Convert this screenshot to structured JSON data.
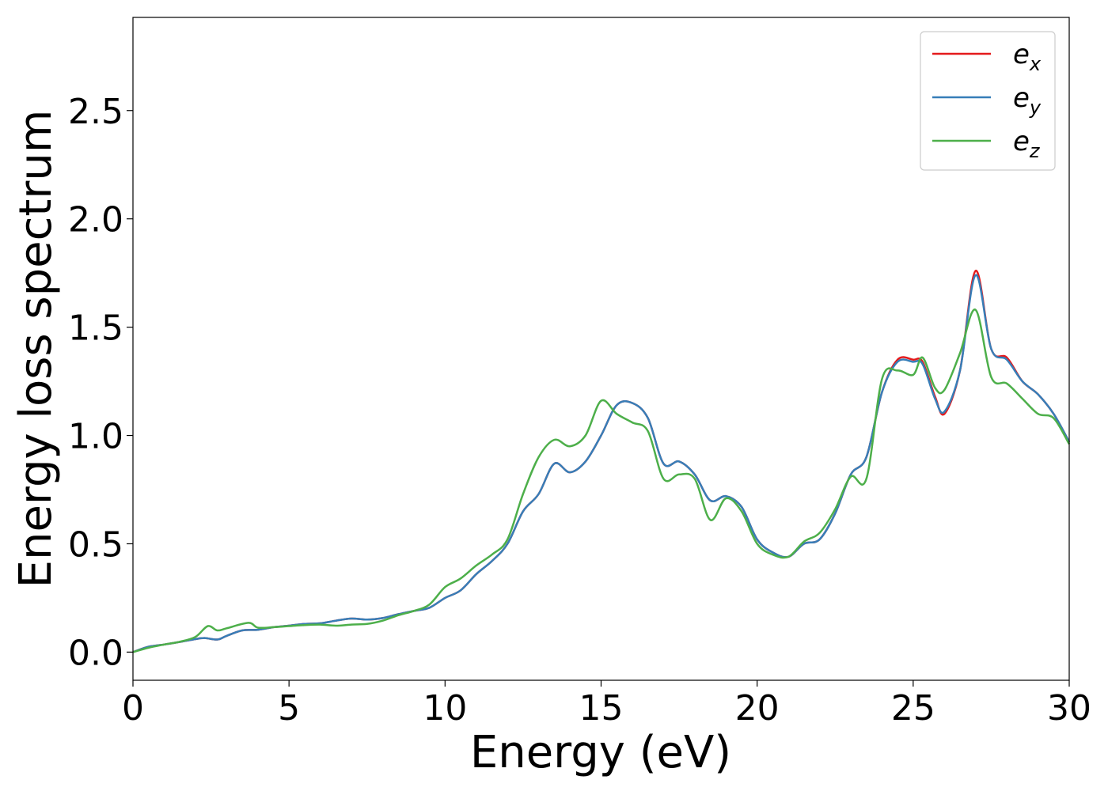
{
  "chart_data": {
    "type": "line",
    "title": "",
    "xlabel": "Energy (eV)",
    "ylabel": "Energy loss spectrum",
    "xlim": [
      0,
      30
    ],
    "ylim": [
      -0.13,
      2.93
    ],
    "xticks": [
      0,
      5,
      10,
      15,
      20,
      25,
      30
    ],
    "xtick_labels": [
      "0",
      "5",
      "10",
      "15",
      "20",
      "25",
      "30"
    ],
    "yticks": [
      0.0,
      0.5,
      1.0,
      1.5,
      2.0,
      2.5
    ],
    "ytick_labels": [
      "0.0",
      "0.5",
      "1.0",
      "1.5",
      "2.0",
      "2.5"
    ],
    "grid": false,
    "legend_position": "top-right",
    "series": [
      {
        "name_base": "e",
        "name_sub": "x",
        "color": "#e41a1c",
        "points": [
          [
            0,
            0.0
          ],
          [
            0.5,
            0.025
          ],
          [
            1,
            0.035
          ],
          [
            1.5,
            0.047
          ],
          [
            2,
            0.06
          ],
          [
            2.3,
            0.065
          ],
          [
            2.7,
            0.058
          ],
          [
            3,
            0.075
          ],
          [
            3.5,
            0.1
          ],
          [
            4,
            0.103
          ],
          [
            4.5,
            0.115
          ],
          [
            5,
            0.122
          ],
          [
            5.5,
            0.13
          ],
          [
            6,
            0.133
          ],
          [
            6.5,
            0.145
          ],
          [
            7,
            0.155
          ],
          [
            7.5,
            0.15
          ],
          [
            8,
            0.157
          ],
          [
            8.5,
            0.175
          ],
          [
            9,
            0.19
          ],
          [
            9.5,
            0.205
          ],
          [
            10,
            0.25
          ],
          [
            10.5,
            0.285
          ],
          [
            11,
            0.36
          ],
          [
            11.5,
            0.42
          ],
          [
            12,
            0.5
          ],
          [
            12.5,
            0.65
          ],
          [
            13,
            0.73
          ],
          [
            13.5,
            0.87
          ],
          [
            14,
            0.83
          ],
          [
            14.5,
            0.88
          ],
          [
            15,
            1.0
          ],
          [
            15.5,
            1.14
          ],
          [
            16,
            1.15
          ],
          [
            16.5,
            1.08
          ],
          [
            17,
            0.87
          ],
          [
            17.5,
            0.88
          ],
          [
            18,
            0.82
          ],
          [
            18.5,
            0.7
          ],
          [
            19,
            0.72
          ],
          [
            19.5,
            0.67
          ],
          [
            20,
            0.52
          ],
          [
            20.5,
            0.46
          ],
          [
            21,
            0.44
          ],
          [
            21.5,
            0.5
          ],
          [
            22,
            0.52
          ],
          [
            22.5,
            0.64
          ],
          [
            23,
            0.82
          ],
          [
            23.5,
            0.9
          ],
          [
            24,
            1.2
          ],
          [
            24.5,
            1.35
          ],
          [
            25,
            1.35
          ],
          [
            25.3,
            1.34
          ],
          [
            25.7,
            1.18
          ],
          [
            26,
            1.1
          ],
          [
            26.5,
            1.3
          ],
          [
            27,
            1.76
          ],
          [
            27.5,
            1.4
          ],
          [
            28,
            1.36
          ],
          [
            28.5,
            1.25
          ],
          [
            29,
            1.19
          ],
          [
            29.5,
            1.1
          ],
          [
            30,
            0.97
          ]
        ]
      },
      {
        "name_base": "e",
        "name_sub": "y",
        "color": "#377eb8",
        "points": [
          [
            0,
            0.0
          ],
          [
            0.5,
            0.025
          ],
          [
            1,
            0.035
          ],
          [
            1.5,
            0.047
          ],
          [
            2,
            0.06
          ],
          [
            2.3,
            0.065
          ],
          [
            2.7,
            0.058
          ],
          [
            3,
            0.075
          ],
          [
            3.5,
            0.1
          ],
          [
            4,
            0.103
          ],
          [
            4.5,
            0.115
          ],
          [
            5,
            0.122
          ],
          [
            5.5,
            0.13
          ],
          [
            6,
            0.133
          ],
          [
            6.5,
            0.145
          ],
          [
            7,
            0.155
          ],
          [
            7.5,
            0.15
          ],
          [
            8,
            0.157
          ],
          [
            8.5,
            0.175
          ],
          [
            9,
            0.19
          ],
          [
            9.5,
            0.205
          ],
          [
            10,
            0.25
          ],
          [
            10.5,
            0.285
          ],
          [
            11,
            0.36
          ],
          [
            11.5,
            0.42
          ],
          [
            12,
            0.5
          ],
          [
            12.5,
            0.65
          ],
          [
            13,
            0.73
          ],
          [
            13.5,
            0.87
          ],
          [
            14,
            0.83
          ],
          [
            14.5,
            0.88
          ],
          [
            15,
            1.0
          ],
          [
            15.5,
            1.14
          ],
          [
            16,
            1.15
          ],
          [
            16.5,
            1.08
          ],
          [
            17,
            0.87
          ],
          [
            17.5,
            0.88
          ],
          [
            18,
            0.82
          ],
          [
            18.5,
            0.7
          ],
          [
            19,
            0.72
          ],
          [
            19.5,
            0.67
          ],
          [
            20,
            0.52
          ],
          [
            20.5,
            0.46
          ],
          [
            21,
            0.44
          ],
          [
            21.5,
            0.5
          ],
          [
            22,
            0.52
          ],
          [
            22.5,
            0.64
          ],
          [
            23,
            0.82
          ],
          [
            23.5,
            0.9
          ],
          [
            24,
            1.2
          ],
          [
            24.5,
            1.34
          ],
          [
            25,
            1.34
          ],
          [
            25.3,
            1.33
          ],
          [
            25.7,
            1.17
          ],
          [
            26,
            1.11
          ],
          [
            26.5,
            1.3
          ],
          [
            27,
            1.74
          ],
          [
            27.5,
            1.4
          ],
          [
            28,
            1.35
          ],
          [
            28.5,
            1.25
          ],
          [
            29,
            1.19
          ],
          [
            29.5,
            1.1
          ],
          [
            30,
            0.97
          ]
        ]
      },
      {
        "name_base": "e",
        "name_sub": "z",
        "color": "#4daf4a",
        "points": [
          [
            0,
            0.0
          ],
          [
            0.5,
            0.02
          ],
          [
            1,
            0.035
          ],
          [
            1.5,
            0.048
          ],
          [
            2,
            0.07
          ],
          [
            2.4,
            0.12
          ],
          [
            2.7,
            0.1
          ],
          [
            3,
            0.11
          ],
          [
            3.7,
            0.135
          ],
          [
            4,
            0.113
          ],
          [
            4.5,
            0.115
          ],
          [
            5,
            0.12
          ],
          [
            5.5,
            0.125
          ],
          [
            6,
            0.127
          ],
          [
            6.5,
            0.122
          ],
          [
            7,
            0.127
          ],
          [
            7.5,
            0.13
          ],
          [
            8,
            0.145
          ],
          [
            8.5,
            0.17
          ],
          [
            9,
            0.19
          ],
          [
            9.5,
            0.22
          ],
          [
            10,
            0.3
          ],
          [
            10.5,
            0.34
          ],
          [
            11,
            0.4
          ],
          [
            11.5,
            0.45
          ],
          [
            12,
            0.52
          ],
          [
            12.5,
            0.73
          ],
          [
            13,
            0.9
          ],
          [
            13.5,
            0.98
          ],
          [
            14,
            0.95
          ],
          [
            14.5,
            1.0
          ],
          [
            15,
            1.16
          ],
          [
            15.5,
            1.1
          ],
          [
            16,
            1.06
          ],
          [
            16.5,
            1.02
          ],
          [
            17,
            0.8
          ],
          [
            17.5,
            0.82
          ],
          [
            18,
            0.8
          ],
          [
            18.5,
            0.61
          ],
          [
            19,
            0.71
          ],
          [
            19.5,
            0.65
          ],
          [
            20,
            0.5
          ],
          [
            20.5,
            0.45
          ],
          [
            21,
            0.44
          ],
          [
            21.5,
            0.51
          ],
          [
            22,
            0.55
          ],
          [
            22.5,
            0.66
          ],
          [
            23,
            0.81
          ],
          [
            23.5,
            0.8
          ],
          [
            24,
            1.26
          ],
          [
            24.5,
            1.3
          ],
          [
            25,
            1.28
          ],
          [
            25.3,
            1.36
          ],
          [
            25.7,
            1.22
          ],
          [
            26,
            1.21
          ],
          [
            26.5,
            1.38
          ],
          [
            27,
            1.58
          ],
          [
            27.5,
            1.27
          ],
          [
            28,
            1.24
          ],
          [
            28.5,
            1.17
          ],
          [
            29,
            1.1
          ],
          [
            29.5,
            1.08
          ],
          [
            30,
            0.96
          ]
        ]
      }
    ]
  }
}
